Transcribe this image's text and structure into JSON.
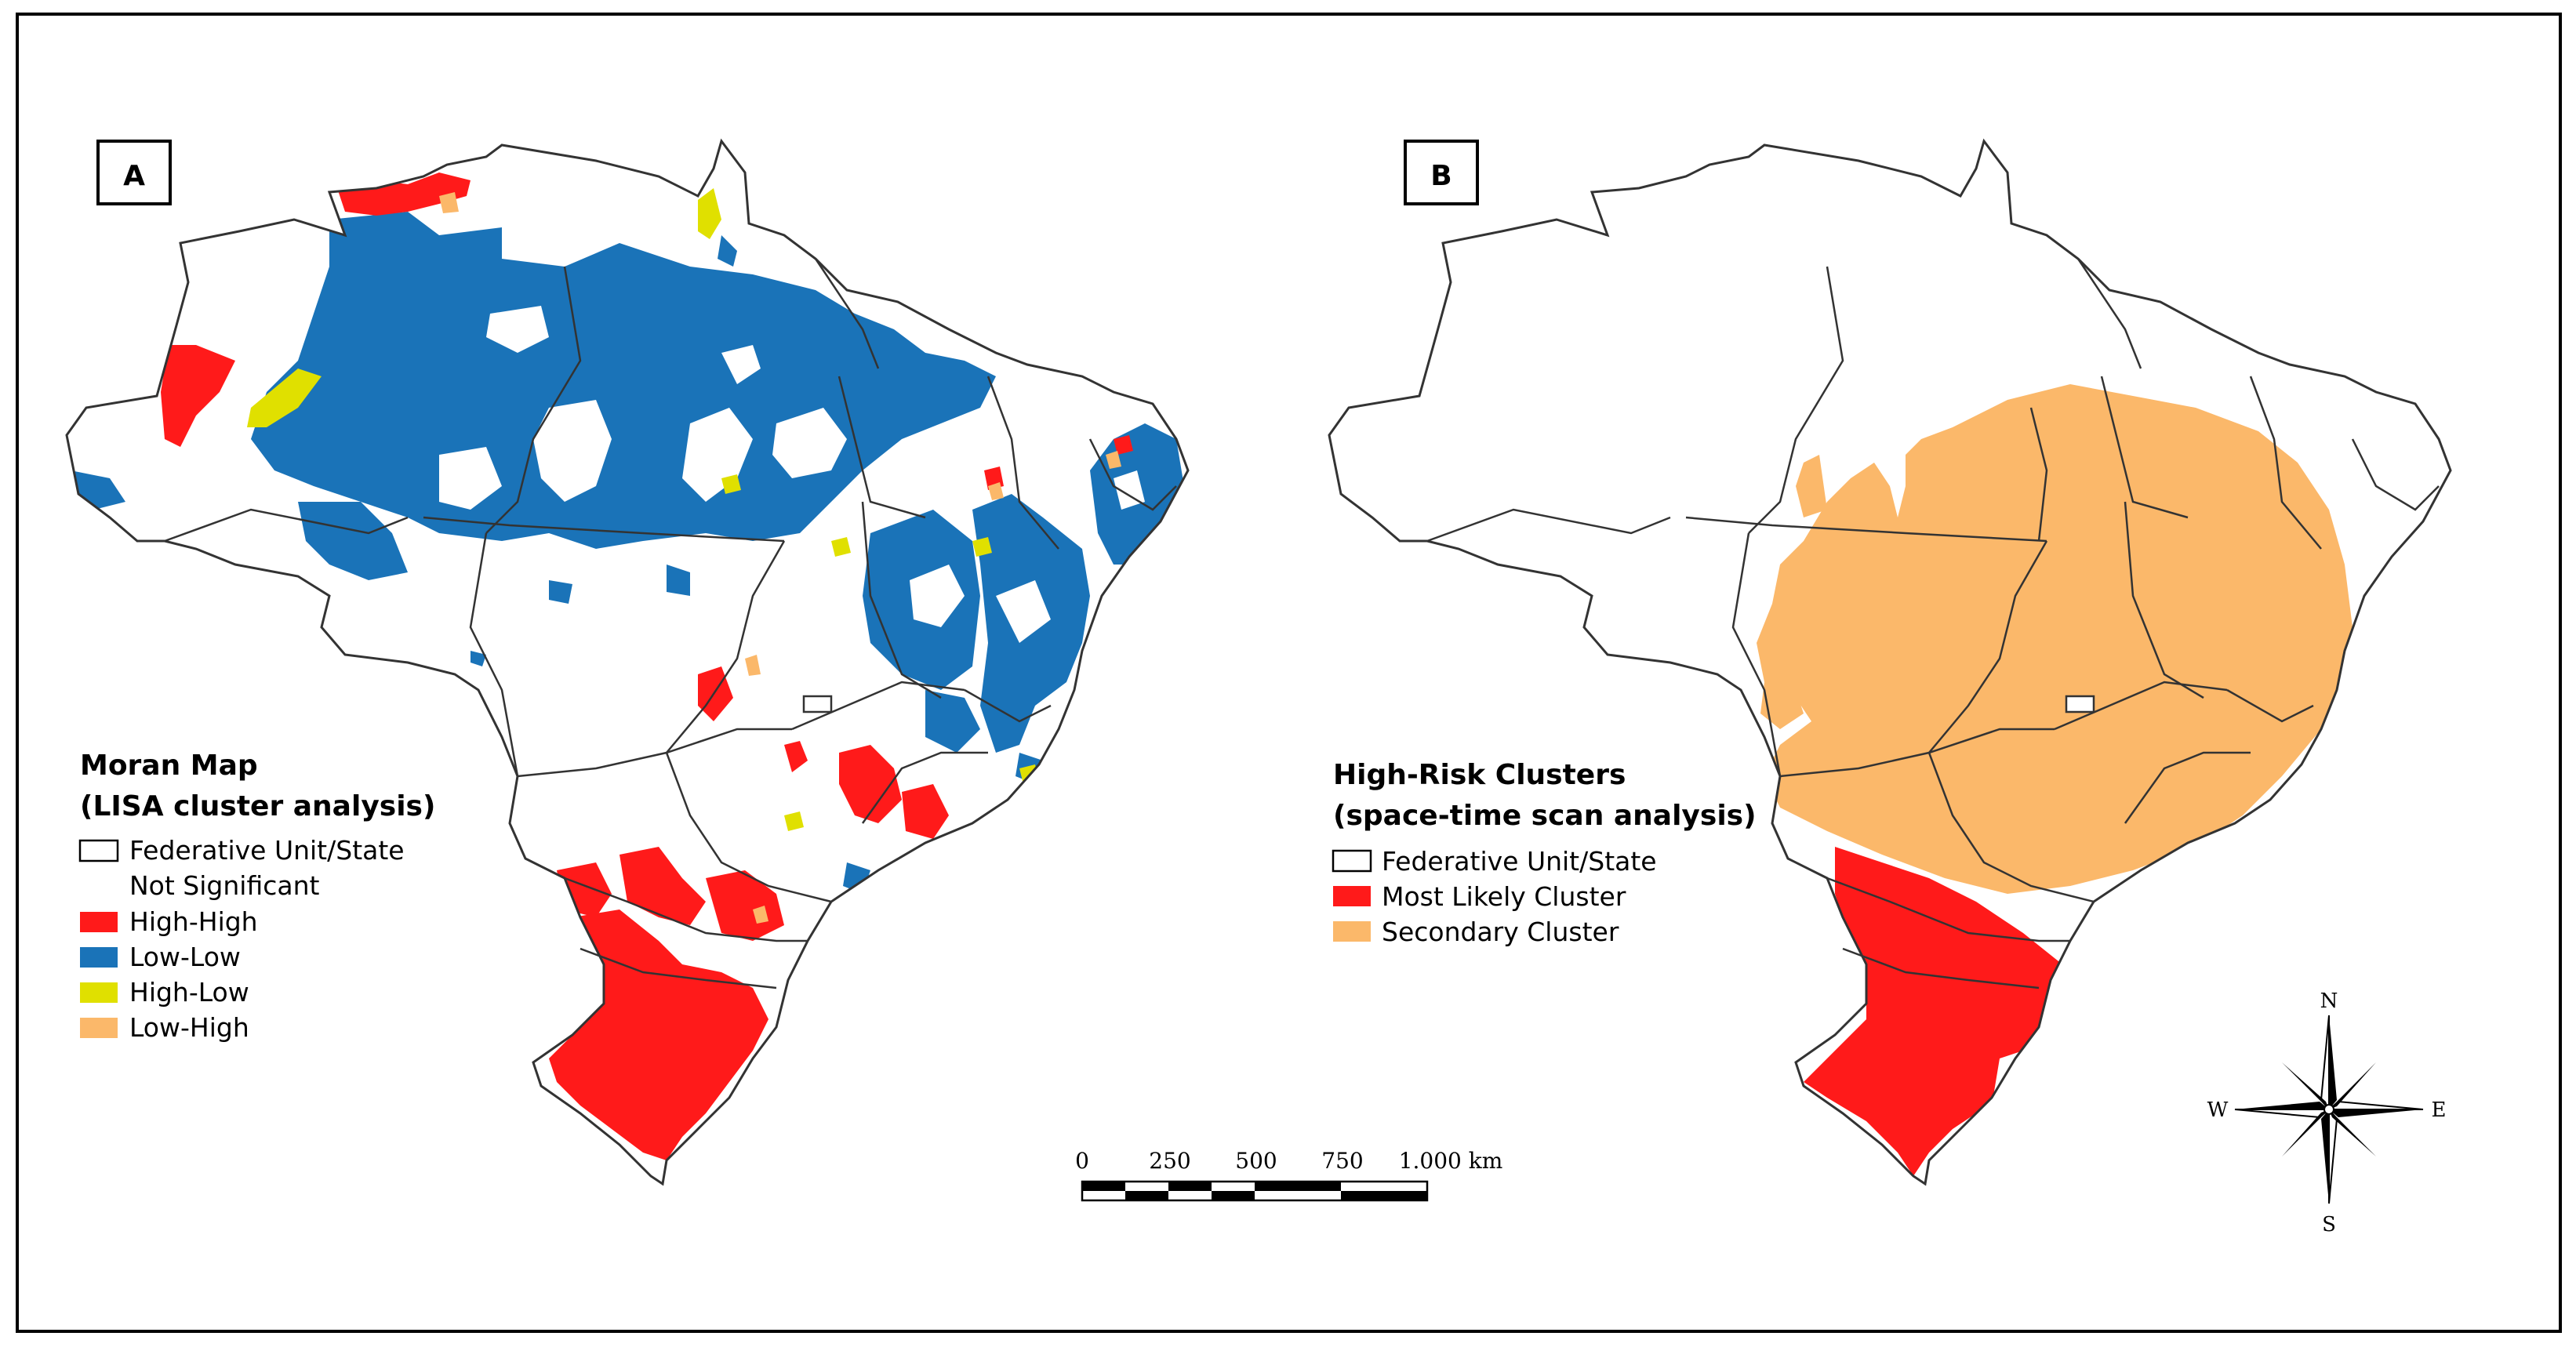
{
  "panels": {
    "a": {
      "label": "A"
    },
    "b": {
      "label": "B"
    }
  },
  "legend_a": {
    "title_line1": "Moran Map",
    "title_line2": "(LISA cluster analysis)",
    "items": [
      {
        "label": "Federative Unit/State",
        "swatch": "outline"
      },
      {
        "label": "Not Significant",
        "swatch": "none"
      },
      {
        "label": "High-High",
        "color": "#ff1a1a"
      },
      {
        "label": "Low-Low",
        "color": "#1a73b8"
      },
      {
        "label": "High-Low",
        "color": "#e0e000"
      },
      {
        "label": "Low-High",
        "color": "#fbb86a"
      }
    ]
  },
  "legend_b": {
    "title_line1": "High-Risk Clusters",
    "title_line2": "(space-time scan analysis)",
    "items": [
      {
        "label": "Federative Unit/State",
        "swatch": "outline"
      },
      {
        "label": "Most Likely Cluster",
        "color": "#ff1a1a"
      },
      {
        "label": "Secondary Cluster",
        "color": "#fbb86a"
      }
    ]
  },
  "scale_bar": {
    "ticks": [
      "0",
      "250",
      "500",
      "750",
      "1.000 km"
    ]
  },
  "compass": {
    "n": "N",
    "s": "S",
    "e": "E",
    "w": "W"
  },
  "colors": {
    "high_high": "#ff1a1a",
    "low_low": "#1a73b8",
    "high_low": "#e0e000",
    "low_high": "#fbb86a",
    "most_likely": "#ff1a1a",
    "secondary": "#fbb86a"
  }
}
